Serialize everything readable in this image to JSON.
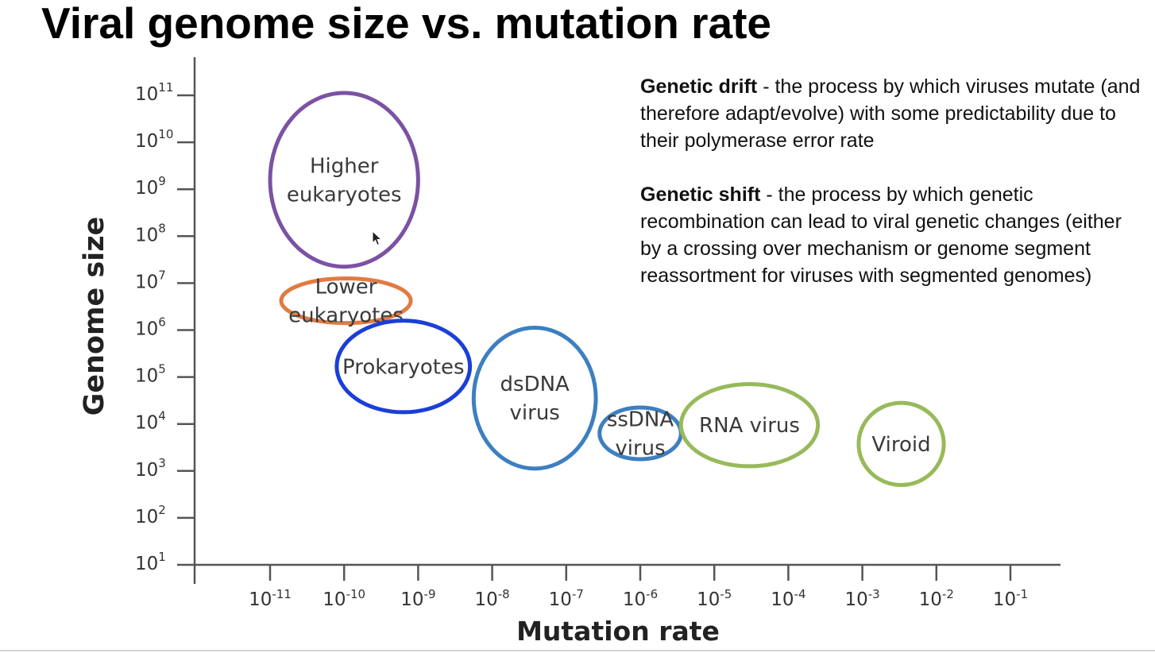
{
  "slide": {
    "title": "Viral genome size vs. mutation rate"
  },
  "definitions": [
    {
      "term": "Genetic drift",
      "separator": " - ",
      "text": "the process by which viruses mutate (and therefore adapt/evolve) with some predictability due to their polymerase error rate"
    },
    {
      "term": "Genetic shift",
      "separator": " - ",
      "text": "the process by which genetic recombination can lead to viral genetic changes (either by a crossing over mechanism or genome segment reassortment for viruses with segmented genomes)"
    }
  ],
  "chart_data": {
    "type": "scatter",
    "xlabel": "Mutation rate",
    "ylabel": "Genome size",
    "x_scale": "log",
    "y_scale": "log",
    "x_ticks": [
      {
        "base": "10",
        "exp": "-11"
      },
      {
        "base": "10",
        "exp": "-10"
      },
      {
        "base": "10",
        "exp": "-9"
      },
      {
        "base": "10",
        "exp": "-8"
      },
      {
        "base": "10",
        "exp": "-7"
      },
      {
        "base": "10",
        "exp": "-6"
      },
      {
        "base": "10",
        "exp": "-5"
      },
      {
        "base": "10",
        "exp": "-4"
      },
      {
        "base": "10",
        "exp": "-3"
      },
      {
        "base": "10",
        "exp": "-2"
      },
      {
        "base": "10",
        "exp": "-1"
      }
    ],
    "y_ticks": [
      {
        "base": "10",
        "exp": "1"
      },
      {
        "base": "10",
        "exp": "2"
      },
      {
        "base": "10",
        "exp": "3"
      },
      {
        "base": "10",
        "exp": "4"
      },
      {
        "base": "10",
        "exp": "5"
      },
      {
        "base": "10",
        "exp": "6"
      },
      {
        "base": "10",
        "exp": "7"
      },
      {
        "base": "10",
        "exp": "8"
      },
      {
        "base": "10",
        "exp": "9"
      },
      {
        "base": "10",
        "exp": "10"
      },
      {
        "base": "10",
        "exp": "11"
      }
    ],
    "xlim_exp": [
      -11.9,
      -0.3
    ],
    "ylim_exp": [
      1,
      11
    ],
    "groups": [
      {
        "label": "Higher eukaryotes",
        "label_lines": [
          "Higher",
          "eukaryotes"
        ],
        "x_exp": [
          -11.0,
          -9.0
        ],
        "y_exp": [
          7.35,
          11.05
        ],
        "color": "#7b52a3"
      },
      {
        "label": "Lower eukaryotes",
        "label_lines": [
          "Lower",
          "eukaryotes"
        ],
        "x_exp": [
          -10.85,
          -9.1
        ],
        "y_exp": [
          6.15,
          7.1
        ],
        "color": "#e07b43"
      },
      {
        "label": "Prokaryotes",
        "label_lines": [
          "Prokaryotes"
        ],
        "x_exp": [
          -10.1,
          -8.3
        ],
        "y_exp": [
          4.25,
          6.2
        ],
        "color": "#1a3fd8"
      },
      {
        "label": "dsDNA virus",
        "label_lines": [
          "dsDNA",
          "virus"
        ],
        "x_exp": [
          -8.25,
          -6.6
        ],
        "y_exp": [
          3.05,
          6.05
        ],
        "color": "#3d7fc0"
      },
      {
        "label": "ssDNA virus",
        "label_lines": [
          "ssDNA",
          "virus"
        ],
        "x_exp": [
          -6.55,
          -5.45
        ],
        "y_exp": [
          3.25,
          4.35
        ],
        "color": "#3d7fc0"
      },
      {
        "label": "RNA virus",
        "label_lines": [
          "RNA virus"
        ],
        "x_exp": [
          -5.45,
          -3.6
        ],
        "y_exp": [
          3.1,
          4.85
        ],
        "color": "#97ba5a"
      },
      {
        "label": "Viroid",
        "label_lines": [
          "Viroid"
        ],
        "x_exp": [
          -3.05,
          -1.9
        ],
        "y_exp": [
          2.7,
          4.45
        ],
        "color": "#97ba5a"
      }
    ]
  }
}
